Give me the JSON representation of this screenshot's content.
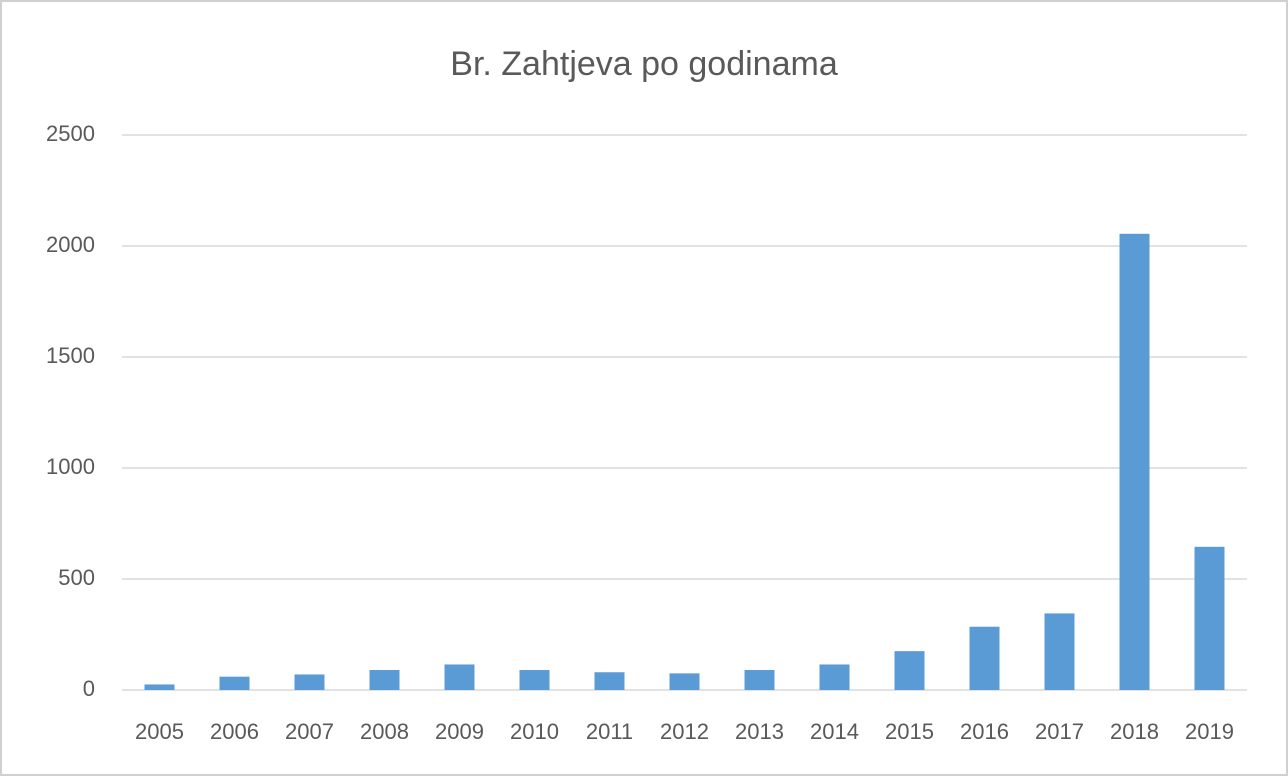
{
  "chart_data": {
    "type": "bar",
    "title": "Br. Zahtjeva po godinama",
    "categories": [
      "2005",
      "2006",
      "2007",
      "2008",
      "2009",
      "2010",
      "2011",
      "2012",
      "2013",
      "2014",
      "2015",
      "2016",
      "2017",
      "2018",
      "2019"
    ],
    "values": [
      25,
      60,
      70,
      90,
      115,
      90,
      80,
      75,
      90,
      115,
      175,
      285,
      345,
      2055,
      645
    ],
    "color": "#5b9bd5",
    "ylim": [
      0,
      2500
    ],
    "yticks": [
      0,
      500,
      1000,
      1500,
      2000,
      2500
    ],
    "grid": true
  }
}
